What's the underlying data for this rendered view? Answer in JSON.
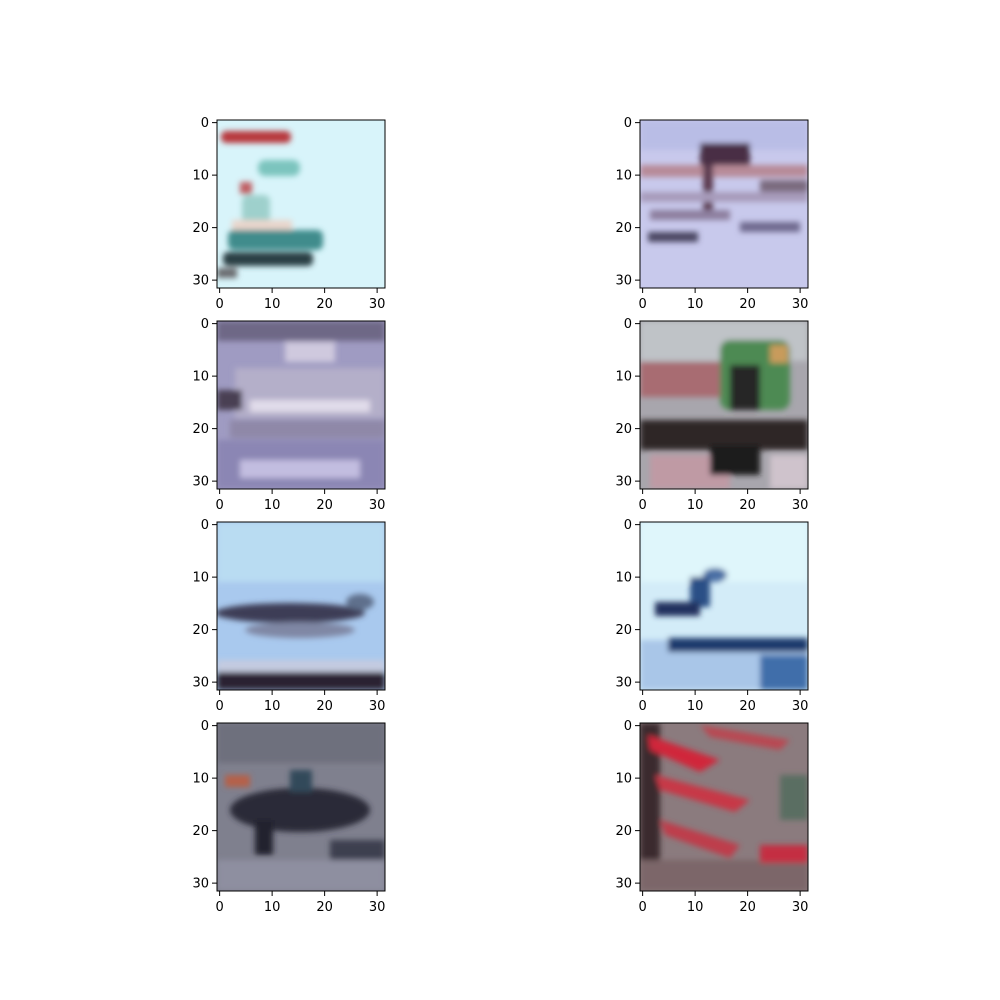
{
  "figure": {
    "grid": {
      "rows": 4,
      "cols": 2
    },
    "panels": [
      {
        "id": "r1c1",
        "scene": "seaplane-light-sky",
        "bg": "#d8f2f8"
      },
      {
        "id": "r1c2",
        "scene": "ship-lavender",
        "bg": "#c9c9ec"
      },
      {
        "id": "r2c1",
        "scene": "ship-purple-haze",
        "bg": "#9a97bd"
      },
      {
        "id": "r2c2",
        "scene": "green-vehicle",
        "bg": "#a7a4a8"
      },
      {
        "id": "r3c1",
        "scene": "plane-blue-sky",
        "bg": "#a9c8ef"
      },
      {
        "id": "r3c2",
        "scene": "bird-over-water",
        "bg": "#cfe9f7"
      },
      {
        "id": "r4c1",
        "scene": "dark-animal-gray",
        "bg": "#80818f"
      },
      {
        "id": "r4c2",
        "scene": "red-stripes",
        "bg": "#8a7a7c"
      }
    ],
    "axis": {
      "x_ticks": [
        "0",
        "10",
        "20",
        "30"
      ],
      "y_ticks": [
        "0",
        "10",
        "20",
        "30"
      ],
      "x_tick_values": [
        0,
        10,
        20,
        30
      ],
      "y_tick_values": [
        0,
        10,
        20,
        30
      ],
      "range": [
        -0.5,
        31.5
      ]
    }
  }
}
